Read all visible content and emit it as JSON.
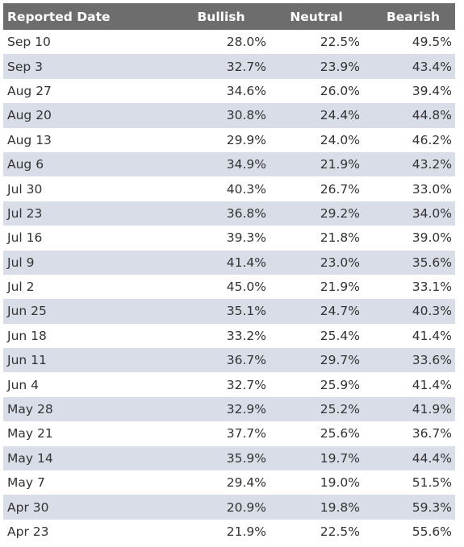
{
  "chart_data": {
    "type": "table",
    "columns": [
      "Reported Date",
      "Bullish",
      "Neutral",
      "Bearish"
    ],
    "rows": [
      [
        "Sep 10",
        "28.0%",
        "22.5%",
        "49.5%"
      ],
      [
        "Sep 3",
        "32.7%",
        "23.9%",
        "43.4%"
      ],
      [
        "Aug 27",
        "34.6%",
        "26.0%",
        "39.4%"
      ],
      [
        "Aug 20",
        "30.8%",
        "24.4%",
        "44.8%"
      ],
      [
        "Aug 13",
        "29.9%",
        "24.0%",
        "46.2%"
      ],
      [
        "Aug 6",
        "34.9%",
        "21.9%",
        "43.2%"
      ],
      [
        "Jul 30",
        "40.3%",
        "26.7%",
        "33.0%"
      ],
      [
        "Jul 23",
        "36.8%",
        "29.2%",
        "34.0%"
      ],
      [
        "Jul 16",
        "39.3%",
        "21.8%",
        "39.0%"
      ],
      [
        "Jul 9",
        "41.4%",
        "23.0%",
        "35.6%"
      ],
      [
        "Jul 2",
        "45.0%",
        "21.9%",
        "33.1%"
      ],
      [
        "Jun 25",
        "35.1%",
        "24.7%",
        "40.3%"
      ],
      [
        "Jun 18",
        "33.2%",
        "25.4%",
        "41.4%"
      ],
      [
        "Jun 11",
        "36.7%",
        "29.7%",
        "33.6%"
      ],
      [
        "Jun 4",
        "32.7%",
        "25.9%",
        "41.4%"
      ],
      [
        "May 28",
        "32.9%",
        "25.2%",
        "41.9%"
      ],
      [
        "May 21",
        "37.7%",
        "25.6%",
        "36.7%"
      ],
      [
        "May 14",
        "35.9%",
        "19.7%",
        "44.4%"
      ],
      [
        "May 7",
        "29.4%",
        "19.0%",
        "51.5%"
      ],
      [
        "Apr 30",
        "20.9%",
        "19.8%",
        "59.3%"
      ],
      [
        "Apr 23",
        "21.9%",
        "22.5%",
        "55.6%"
      ]
    ]
  },
  "colors": {
    "header_bg": "#6d6d6d",
    "header_text": "#ffffff",
    "stripe_bg": "#d9dde8",
    "row_bg": "#ffffff",
    "cell_text": "#333333"
  }
}
